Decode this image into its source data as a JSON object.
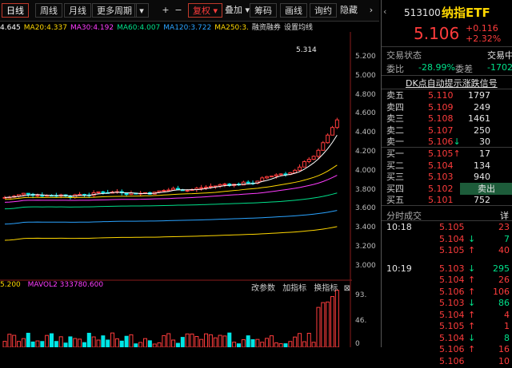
{
  "toolbar": {
    "tabs": [
      "日线",
      "周线",
      "月线",
      "更多周期"
    ],
    "icons": [
      "plus-icon",
      "minus-icon",
      "arrow-left-icon",
      "arrow-right-icon",
      "arrow-up-icon",
      "arrow-down-icon"
    ],
    "fuquan": "复权",
    "buttons": [
      "叠加",
      "筹码",
      "画线",
      "询约",
      "隐藏"
    ]
  },
  "ma_line": [
    {
      "text": "4.645",
      "color": "#ffffff"
    },
    {
      "text": "MA20:4.337",
      "color": "#ffd700"
    },
    {
      "text": "MA30:4.192",
      "color": "#ff3cff"
    },
    {
      "text": "MA60:4.007",
      "color": "#00e08a"
    },
    {
      "text": "MA120:3.722",
      "color": "#2aa3ff"
    },
    {
      "text": "MA250:3.",
      "color": "#ffd700"
    },
    {
      "text": "融资融券",
      "color": "#dddddd"
    },
    {
      "text": "设置均线",
      "color": "#dddddd"
    }
  ],
  "chart": {
    "high_label": "5.314",
    "y_ticks": [
      "5.200",
      "5.000",
      "4.800",
      "4.600",
      "4.400",
      "4.200",
      "4.000",
      "3.800",
      "3.600",
      "3.400",
      "3.200",
      "3.000"
    ],
    "volume_ticks": [
      "93.",
      "46.",
      "0"
    ],
    "volume_label": "5.200",
    "vol_ma": "MAVOL2 333780.600",
    "vol_buttons": [
      "改参数",
      "加指标",
      "换指标"
    ]
  },
  "quote": {
    "code": "513100",
    "name": "纳指ETF",
    "price": "5.106",
    "change": "+0.116",
    "change_pct": "+2.32%",
    "status_label": "交易状态",
    "status_value": "交易中",
    "weibi_label": "委比",
    "weibi_value": "-28.99%",
    "weicha_label": "委差",
    "weicha_value": "-1702",
    "hint": "DK点自动提示涨跌信号",
    "sell": [
      {
        "label": "卖五",
        "price": "5.110",
        "vol": "1797"
      },
      {
        "label": "卖四",
        "price": "5.109",
        "vol": "249"
      },
      {
        "label": "卖三",
        "price": "5.108",
        "vol": "1461"
      },
      {
        "label": "卖二",
        "price": "5.107",
        "vol": "250"
      },
      {
        "label": "卖一",
        "price": "5.106",
        "vol": "30",
        "arrow": "↓"
      }
    ],
    "buy": [
      {
        "label": "买一",
        "price": "5.105",
        "vol": "17",
        "arrow": "↑"
      },
      {
        "label": "买二",
        "price": "5.104",
        "vol": "134"
      },
      {
        "label": "买三",
        "price": "5.103",
        "vol": "940"
      },
      {
        "label": "买四",
        "price": "5.102",
        "vol": "卖出"
      },
      {
        "label": "买五",
        "price": "5.101",
        "vol": "752"
      }
    ],
    "trades_title": "分时成交",
    "trades_detail": "详",
    "trades": [
      {
        "time": "10:18",
        "price": "5.105",
        "arrow": "",
        "vol": "23"
      },
      {
        "time": "",
        "price": "5.104",
        "arrow": "↓",
        "vol": "7"
      },
      {
        "time": "",
        "price": "5.105",
        "arrow": "↑",
        "vol": "40"
      },
      {
        "time": "10:19",
        "price": "5.103",
        "arrow": "↓",
        "vol": "295"
      },
      {
        "time": "",
        "price": "5.104",
        "arrow": "↑",
        "vol": "26"
      },
      {
        "time": "",
        "price": "5.106",
        "arrow": "↑",
        "vol": "106"
      },
      {
        "time": "",
        "price": "5.103",
        "arrow": "↓",
        "vol": "86"
      },
      {
        "time": "",
        "price": "5.104",
        "arrow": "↑",
        "vol": "4"
      },
      {
        "time": "",
        "price": "5.105",
        "arrow": "↑",
        "vol": "1"
      },
      {
        "time": "",
        "price": "5.104",
        "arrow": "↓",
        "vol": "8"
      },
      {
        "time": "",
        "price": "5.106",
        "arrow": "↑",
        "vol": "16"
      },
      {
        "time": "",
        "price": "5.106",
        "arrow": "",
        "vol": "10"
      }
    ]
  },
  "colors": {
    "up": "#ff3c3c",
    "down": "#00e08a",
    "ma5": "#ffffff",
    "ma20": "#ffd700",
    "ma30": "#ff3cff",
    "ma60": "#00e08a",
    "ma120": "#2aa3ff",
    "ma250": "#ffd700"
  }
}
